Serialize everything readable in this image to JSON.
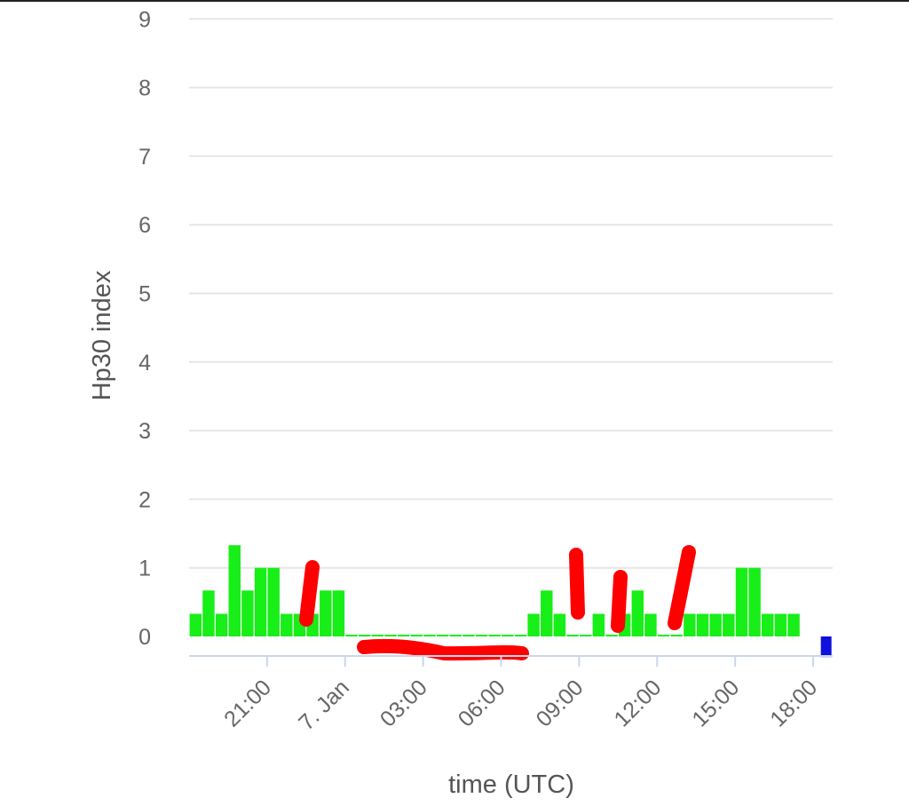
{
  "chart_data": {
    "type": "bar",
    "title": "",
    "xlabel": "time (UTC)",
    "ylabel": "Hp30 index",
    "ylim": [
      -0.3,
      9
    ],
    "yticks": [
      "0",
      "1",
      "2",
      "3",
      "4",
      "5",
      "6",
      "7",
      "8",
      "9"
    ],
    "xticks": [
      {
        "label": "21:00",
        "hour": 21
      },
      {
        "label": "7. Jan",
        "hour": 24
      },
      {
        "label": "03:00",
        "hour": 27
      },
      {
        "label": "06:00",
        "hour": 30
      },
      {
        "label": "09:00",
        "hour": 33
      },
      {
        "label": "12:00",
        "hour": 36
      },
      {
        "label": "15:00",
        "hour": 39
      },
      {
        "label": "18:00",
        "hour": 42
      }
    ],
    "xlim_hours": [
      18.0,
      42.75
    ],
    "bar_hours_start": 18.25,
    "bar_interval_hours": 0.5,
    "grid": true,
    "legend": "none",
    "colors": {
      "low": "#18ee18",
      "forecast": "#1010dd",
      "annotation": "#ff0000",
      "grid": "#e6e6e6",
      "axis": "#ccd6eb"
    },
    "series": [
      {
        "values": [
          0.33,
          0.67,
          0.33,
          1.33,
          0.67,
          1.0,
          1.0,
          0.33,
          0.33,
          0.33,
          0.67,
          0.67,
          0,
          0,
          0,
          0,
          0,
          0,
          0,
          0,
          0,
          0,
          0,
          0,
          0,
          0,
          0.33,
          0.67,
          0.33,
          0,
          0,
          0.33,
          0,
          0.33,
          0.67,
          0.33,
          0,
          0,
          0.33,
          0.33,
          0.33,
          0.33,
          1.0,
          1.0,
          0.33,
          0.33,
          0.33
        ]
      },
      {
        "type": "forecast",
        "start_hour": 42.5,
        "values": [
          -0.3
        ]
      }
    ]
  }
}
